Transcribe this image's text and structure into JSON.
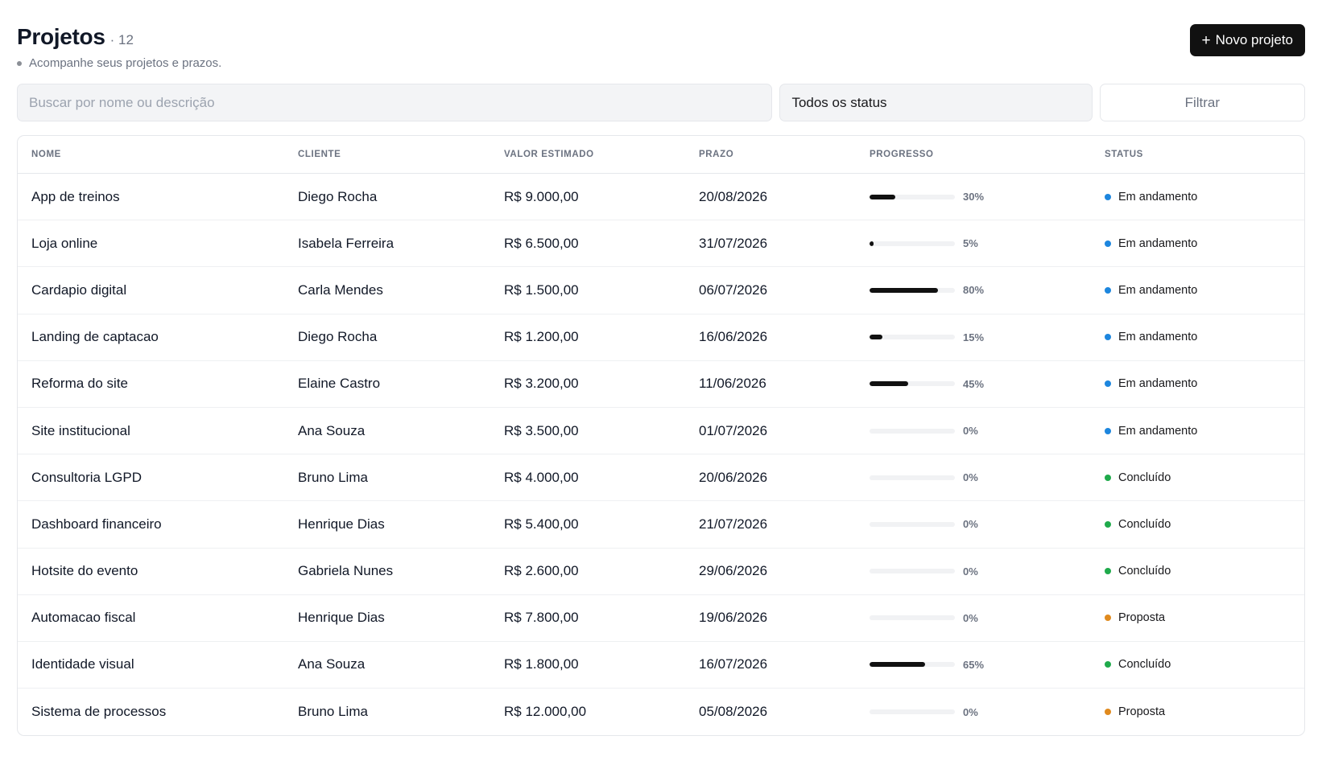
{
  "header": {
    "title": "Projetos",
    "count": "· 12",
    "subtitle": "Acompanhe seus projetos e prazos.",
    "new_button": {
      "icon": "plus-icon",
      "label": "Novo projeto"
    }
  },
  "filters": {
    "search_placeholder": "Buscar por nome ou descrição",
    "search_value": "",
    "status_select": "Todos os status",
    "filter_button": "Filtrar"
  },
  "table": {
    "columns": [
      "NOME",
      "CLIENTE",
      "VALOR ESTIMADO",
      "PRAZO",
      "PROGRESSO",
      "STATUS"
    ],
    "rows": [
      {
        "nome": "App de treinos",
        "cliente": "Diego Rocha",
        "valor": "R$ 9.000,00",
        "prazo": "20/08/2026",
        "progresso": 30,
        "progresso_label": "30%",
        "status": "Em andamento"
      },
      {
        "nome": "Loja online",
        "cliente": "Isabela Ferreira",
        "valor": "R$ 6.500,00",
        "prazo": "31/07/2026",
        "progresso": 5,
        "progresso_label": "5%",
        "status": "Em andamento"
      },
      {
        "nome": "Cardapio digital",
        "cliente": "Carla Mendes",
        "valor": "R$ 1.500,00",
        "prazo": "06/07/2026",
        "progresso": 80,
        "progresso_label": "80%",
        "status": "Em andamento"
      },
      {
        "nome": "Landing de captacao",
        "cliente": "Diego Rocha",
        "valor": "R$ 1.200,00",
        "prazo": "16/06/2026",
        "progresso": 15,
        "progresso_label": "15%",
        "status": "Em andamento"
      },
      {
        "nome": "Reforma do site",
        "cliente": "Elaine Castro",
        "valor": "R$ 3.200,00",
        "prazo": "11/06/2026",
        "progresso": 45,
        "progresso_label": "45%",
        "status": "Em andamento"
      },
      {
        "nome": "Site institucional",
        "cliente": "Ana Souza",
        "valor": "R$ 3.500,00",
        "prazo": "01/07/2026",
        "progresso": 0,
        "progresso_label": "0%",
        "status": "Em andamento"
      },
      {
        "nome": "Consultoria LGPD",
        "cliente": "Bruno Lima",
        "valor": "R$ 4.000,00",
        "prazo": "20/06/2026",
        "progresso": 0,
        "progresso_label": "0%",
        "status": "Concluído"
      },
      {
        "nome": "Dashboard financeiro",
        "cliente": "Henrique Dias",
        "valor": "R$ 5.400,00",
        "prazo": "21/07/2026",
        "progresso": 0,
        "progresso_label": "0%",
        "status": "Concluído"
      },
      {
        "nome": "Hotsite do evento",
        "cliente": "Gabriela Nunes",
        "valor": "R$ 2.600,00",
        "prazo": "29/06/2026",
        "progresso": 0,
        "progresso_label": "0%",
        "status": "Concluído"
      },
      {
        "nome": "Automacao fiscal",
        "cliente": "Henrique Dias",
        "valor": "R$ 7.800,00",
        "prazo": "19/06/2026",
        "progresso": 0,
        "progresso_label": "0%",
        "status": "Proposta"
      },
      {
        "nome": "Identidade visual",
        "cliente": "Ana Souza",
        "valor": "R$ 1.800,00",
        "prazo": "16/07/2026",
        "progresso": 65,
        "progresso_label": "65%",
        "status": "Concluído"
      },
      {
        "nome": "Sistema de processos",
        "cliente": "Bruno Lima",
        "valor": "R$ 12.000,00",
        "prazo": "05/08/2026",
        "progresso": 0,
        "progresso_label": "0%",
        "status": "Proposta"
      }
    ]
  },
  "status_colors": {
    "Em andamento": "#1d86de",
    "Concluído": "#1faa4b",
    "Proposta": "#e08a1e"
  },
  "colors": {
    "accent": "#111111",
    "progress_track": "#f1f2f4"
  }
}
